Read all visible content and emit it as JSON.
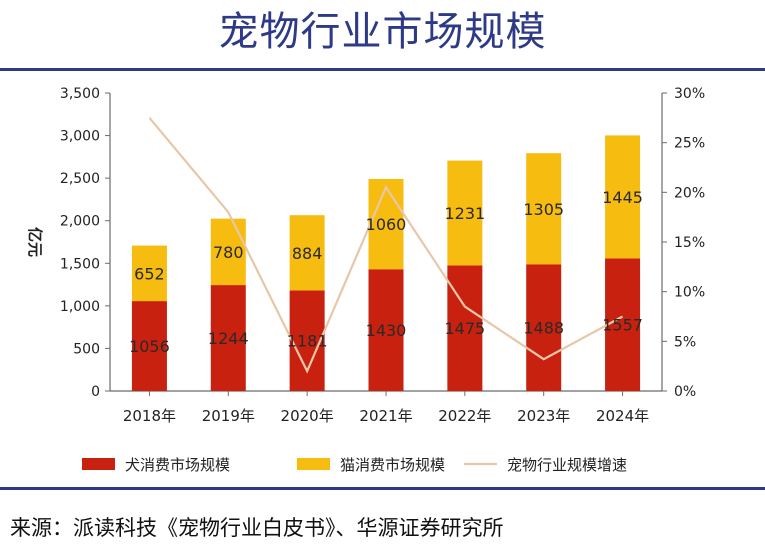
{
  "page": {
    "title": "宠物行业市场规模",
    "source": "来源：派读科技《宠物行业白皮书》、华源证券研究所"
  },
  "chart_data": {
    "type": "bar",
    "stacked": true,
    "categories": [
      "2018年",
      "2019年",
      "2020年",
      "2021年",
      "2022年",
      "2023年",
      "2024年"
    ],
    "series": [
      {
        "name": "犬消费市场规模",
        "type": "bar",
        "axis": "left",
        "color": "#c8210f",
        "values": [
          1056,
          1244,
          1181,
          1430,
          1475,
          1488,
          1557
        ],
        "labels": [
          "1056",
          "1244",
          "1181",
          "1430",
          "1475",
          "1488",
          "1557"
        ]
      },
      {
        "name": "猫消费市场规模",
        "type": "bar",
        "axis": "left",
        "color": "#f7bc10",
        "values": [
          652,
          780,
          884,
          1060,
          1231,
          1305,
          1445
        ],
        "labels": [
          "652",
          "780",
          "884",
          "1060",
          "1231",
          "1305",
          "1445"
        ]
      },
      {
        "name": "宠物行业规模增速",
        "type": "line",
        "axis": "right",
        "color": "#e8c7a8",
        "values": [
          27.5,
          18.0,
          2.0,
          20.5,
          8.5,
          3.2,
          7.5
        ]
      }
    ],
    "ylabel": "亿元",
    "ylim": [
      0,
      3500
    ],
    "yticks": [
      "0",
      "500",
      "1,000",
      "1,500",
      "2,000",
      "2,500",
      "3,000",
      "3,500"
    ],
    "y2lim": [
      0,
      30
    ],
    "y2ticks": [
      "0%",
      "5%",
      "10%",
      "15%",
      "20%",
      "25%",
      "30%"
    ],
    "legend": "bottom",
    "grid": false
  }
}
